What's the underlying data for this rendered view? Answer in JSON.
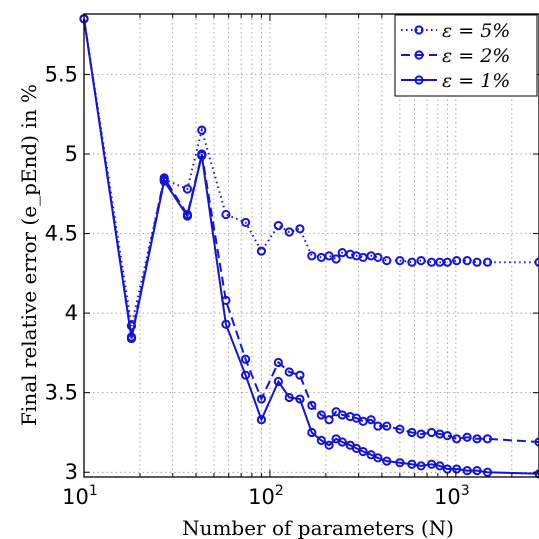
{
  "chart_data": {
    "type": "line",
    "xlabel": "Number of parameters (N)",
    "ylabel": "Final relative error (e_pEnd) in %",
    "xscale": "log",
    "xlim": [
      10,
      2800
    ],
    "ylim": [
      2.97,
      5.88
    ],
    "grid": true,
    "legend_position": "top-right",
    "x_ticks": [
      {
        "value": 10,
        "base": "10",
        "exp": "1"
      },
      {
        "value": 100,
        "base": "10",
        "exp": "2"
      },
      {
        "value": 1000,
        "base": "10",
        "exp": "3"
      }
    ],
    "y_ticks": [
      {
        "value": 3,
        "label": "3"
      },
      {
        "value": 3.5,
        "label": "3.5"
      },
      {
        "value": 4,
        "label": "4"
      },
      {
        "value": 4.5,
        "label": "4.5"
      },
      {
        "value": 5,
        "label": "5"
      },
      {
        "value": 5.5,
        "label": "5.5"
      }
    ],
    "series": [
      {
        "name": "ε = 5%",
        "color": "#1414d8",
        "line_style": "dotted",
        "x": [
          10,
          18,
          27,
          36,
          43,
          58,
          74,
          90,
          111,
          127,
          145,
          168,
          189,
          208,
          227,
          245,
          270,
          292,
          317,
          350,
          381,
          425,
          500,
          580,
          650,
          740,
          820,
          900,
          1010,
          1150,
          1300,
          1480,
          2800
        ],
        "y": [
          5.85,
          3.92,
          4.84,
          4.78,
          5.15,
          4.62,
          4.57,
          4.39,
          4.55,
          4.51,
          4.53,
          4.36,
          4.35,
          4.36,
          4.34,
          4.38,
          4.37,
          4.36,
          4.35,
          4.36,
          4.35,
          4.33,
          4.33,
          4.32,
          4.33,
          4.32,
          4.32,
          4.32,
          4.33,
          4.33,
          4.32,
          4.32,
          4.32
        ]
      },
      {
        "name": "ε = 2%",
        "color": "#1414d8",
        "line_style": "dashed",
        "x": [
          10,
          18,
          27,
          36,
          43,
          58,
          74,
          90,
          111,
          127,
          145,
          168,
          189,
          208,
          227,
          245,
          270,
          292,
          317,
          350,
          381,
          425,
          500,
          580,
          650,
          740,
          820,
          900,
          1010,
          1150,
          1300,
          1480,
          2800
        ],
        "y": [
          5.85,
          3.85,
          4.85,
          4.62,
          5.0,
          4.08,
          3.71,
          3.46,
          3.69,
          3.63,
          3.61,
          3.42,
          3.36,
          3.33,
          3.38,
          3.36,
          3.35,
          3.34,
          3.32,
          3.33,
          3.29,
          3.29,
          3.27,
          3.25,
          3.24,
          3.25,
          3.24,
          3.23,
          3.21,
          3.22,
          3.21,
          3.21,
          3.19
        ]
      },
      {
        "name": "ε = 1%",
        "color": "#1414d8",
        "line_style": "solid",
        "x": [
          10,
          18,
          27,
          36,
          43,
          58,
          74,
          90,
          111,
          127,
          145,
          168,
          189,
          208,
          227,
          245,
          270,
          292,
          317,
          350,
          381,
          425,
          500,
          580,
          650,
          740,
          820,
          900,
          1010,
          1150,
          1300,
          1480,
          2800
        ],
        "y": [
          5.85,
          3.84,
          4.83,
          4.61,
          4.99,
          3.93,
          3.61,
          3.33,
          3.57,
          3.47,
          3.46,
          3.25,
          3.2,
          3.17,
          3.21,
          3.19,
          3.17,
          3.15,
          3.13,
          3.11,
          3.09,
          3.07,
          3.06,
          3.05,
          3.04,
          3.05,
          3.04,
          3.02,
          3.02,
          3.01,
          3.01,
          3.0,
          2.99
        ]
      }
    ]
  }
}
